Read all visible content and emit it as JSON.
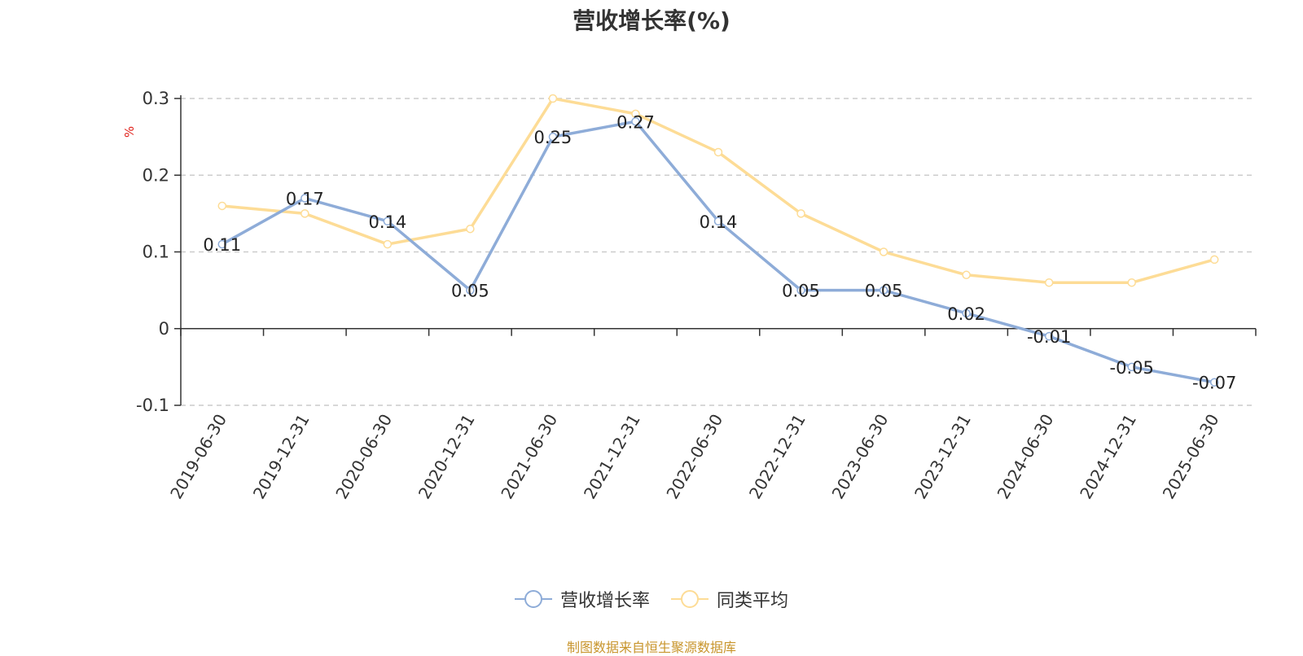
{
  "chart_data": {
    "type": "line",
    "title": "营收增长率(%)",
    "ylabel": "%",
    "xlabel": "",
    "ylim": [
      -0.1,
      0.3
    ],
    "yticks": [
      "0.3",
      "0.2",
      "0.1",
      "0",
      "-0.1"
    ],
    "ytick_values": [
      0.3,
      0.2,
      0.1,
      0,
      -0.1
    ],
    "grid": true,
    "legend_position": "bottom-center",
    "categories": [
      "2019-06-30",
      "2019-12-31",
      "2020-06-30",
      "2020-12-31",
      "2021-06-30",
      "2021-12-31",
      "2022-06-30",
      "2022-12-31",
      "2023-06-30",
      "2023-12-31",
      "2024-06-30",
      "2024-12-31",
      "2025-06-30"
    ],
    "series": [
      {
        "name": "营收增长率",
        "color": "#8eacd8",
        "values": [
          0.11,
          0.17,
          0.14,
          0.05,
          0.25,
          0.27,
          0.14,
          0.05,
          0.05,
          0.02,
          -0.01,
          -0.05,
          -0.07
        ],
        "labels": [
          "0.11",
          "0.17",
          "0.14",
          "0.05",
          "0.25",
          "0.27",
          "0.14",
          "0.05",
          "0.05",
          "0.02",
          "-0.01",
          "-0.05",
          "-0.07"
        ]
      },
      {
        "name": "同类平均",
        "color": "#fddc96",
        "values": [
          0.16,
          0.15,
          0.11,
          0.13,
          0.3,
          0.28,
          0.23,
          0.15,
          0.1,
          0.07,
          0.06,
          0.06,
          0.09
        ]
      }
    ]
  },
  "source_note": "制图数据来自恒生聚源数据库",
  "colors": {
    "axis": "#333333",
    "grid": "#cccccc",
    "ylabel": "#e0201a",
    "source": "#c8952c"
  }
}
